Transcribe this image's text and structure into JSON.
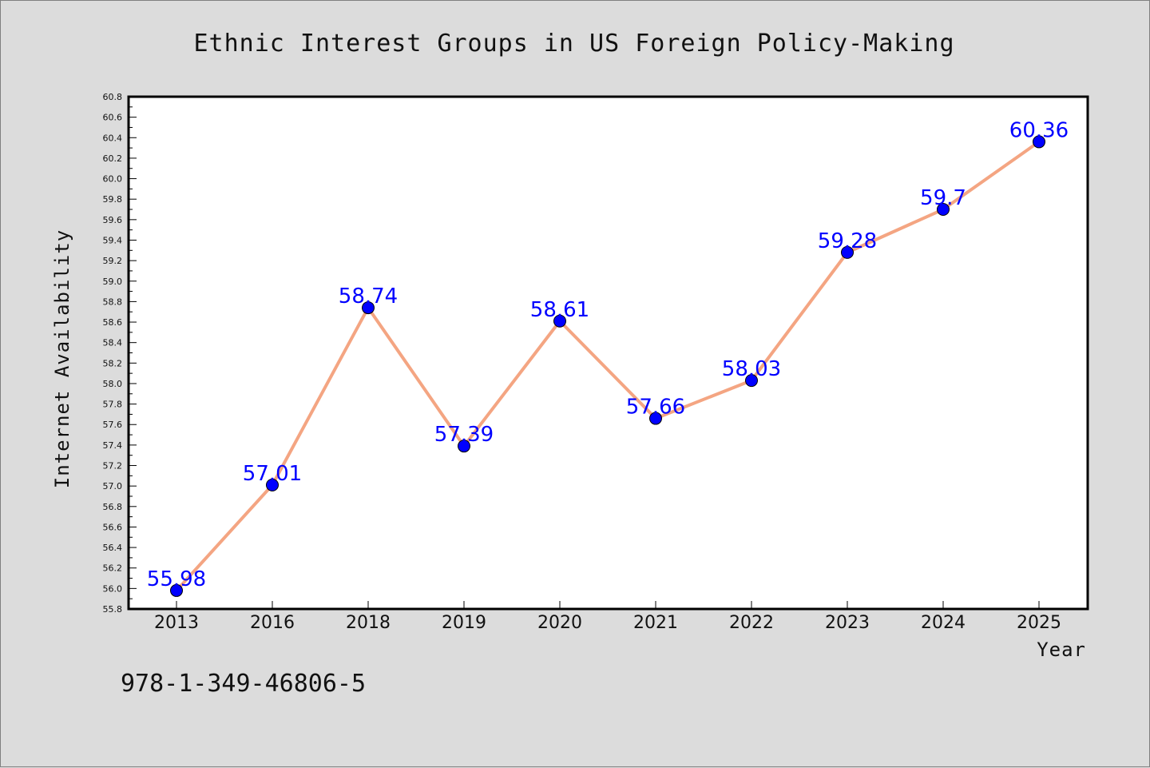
{
  "chart_data": {
    "type": "line",
    "title": "Ethnic Interest Groups in US Foreign Policy-Making",
    "xlabel": "Year",
    "ylabel": "Internet Availability",
    "categories": [
      "2013",
      "2016",
      "2018",
      "2019",
      "2020",
      "2021",
      "2022",
      "2023",
      "2024",
      "2025"
    ],
    "series": [
      {
        "values": [
          55.98,
          57.01,
          58.74,
          57.39,
          58.61,
          57.66,
          58.03,
          59.28,
          59.7,
          60.36
        ],
        "labels": [
          "55.98",
          "57.01",
          "58.74",
          "57.39",
          "58.61",
          "57.66",
          "58.03",
          "59.28",
          "59.7",
          "60.36"
        ],
        "line_color": "#f4a582",
        "marker_color": "#0000ff"
      }
    ],
    "ylim": [
      55.8,
      60.8
    ],
    "yticks": [
      "55.8",
      "56.0",
      "56.2",
      "56.4",
      "56.6",
      "56.8",
      "57.0",
      "57.2",
      "57.4",
      "57.6",
      "57.8",
      "58.0",
      "58.2",
      "58.4",
      "58.6",
      "58.8",
      "59.0",
      "59.2",
      "59.4",
      "59.6",
      "59.8",
      "60.0",
      "60.2",
      "60.4",
      "60.6",
      "60.8"
    ],
    "grid": false,
    "legend": "none"
  },
  "footer": {
    "isbn": "978-1-349-46806-5"
  }
}
